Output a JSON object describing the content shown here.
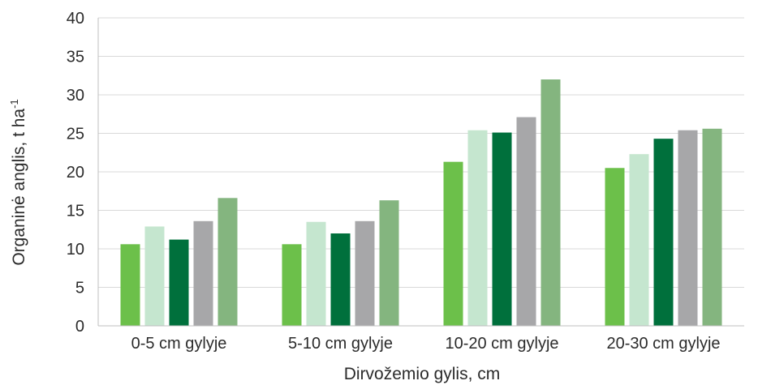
{
  "chart_data": {
    "type": "bar",
    "xlabel": "Dirvožemio gylis, cm",
    "ylabel_main": "Organinė anglis, t ha",
    "ylabel_sup": "-1",
    "categories": [
      "0-5 cm gylyje",
      "5-10 cm gylyje",
      "10-20 cm gylyje",
      "20-30 cm gylyje"
    ],
    "ylim": [
      0,
      40
    ],
    "yticks": [
      "0",
      "5",
      "10",
      "15",
      "20",
      "25",
      "30",
      "35",
      "40"
    ],
    "grid": true,
    "series": [
      {
        "color": "#6cc04a",
        "values": [
          10.6,
          10.6,
          21.3,
          20.5
        ]
      },
      {
        "color": "#c5e6cf",
        "values": [
          12.9,
          13.5,
          25.4,
          22.3
        ]
      },
      {
        "color": "#00703c",
        "values": [
          11.2,
          12.0,
          25.1,
          24.3
        ]
      },
      {
        "color": "#a7a7a9",
        "values": [
          13.6,
          13.6,
          27.1,
          25.4
        ]
      },
      {
        "color": "#84b57f",
        "values": [
          16.6,
          16.3,
          32.0,
          25.6
        ]
      }
    ]
  }
}
